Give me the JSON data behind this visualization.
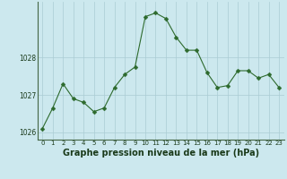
{
  "x": [
    0,
    1,
    2,
    3,
    4,
    5,
    6,
    7,
    8,
    9,
    10,
    11,
    12,
    13,
    14,
    15,
    16,
    17,
    18,
    19,
    20,
    21,
    22,
    23
  ],
  "y": [
    1026.1,
    1026.65,
    1027.3,
    1026.9,
    1026.8,
    1026.55,
    1026.65,
    1027.2,
    1027.55,
    1027.75,
    1029.1,
    1029.2,
    1029.05,
    1028.55,
    1028.2,
    1028.2,
    1027.6,
    1027.2,
    1027.25,
    1027.65,
    1027.65,
    1027.45,
    1027.55,
    1027.2
  ],
  "line_color": "#2d6a2d",
  "marker_color": "#2d6a2d",
  "bg_color": "#cce8ee",
  "grid_color": "#aaccd4",
  "xlabel": "Graphe pression niveau de la mer (hPa)",
  "xlabel_color": "#1a3a1a",
  "ylim": [
    1025.8,
    1029.5
  ],
  "yticks": [
    1026,
    1027,
    1028
  ],
  "xticks": [
    0,
    1,
    2,
    3,
    4,
    5,
    6,
    7,
    8,
    9,
    10,
    11,
    12,
    13,
    14,
    15,
    16,
    17,
    18,
    19,
    20,
    21,
    22,
    23
  ],
  "tick_fontsize": 5.0,
  "xlabel_fontsize": 7.0,
  "marker_size": 2.5,
  "line_width": 0.8
}
